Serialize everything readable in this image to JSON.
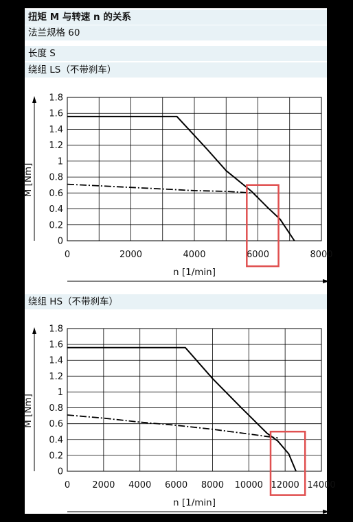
{
  "header": {
    "title": "扭矩 M 与转速 n 的关系",
    "flange": "法兰规格 60",
    "length": "长度 S",
    "winding_ls": "绕组 LS（不带刹车）",
    "winding_hs": "绕组 HS（不带刹车）"
  },
  "colors": {
    "header_bg": "#e8f2f6",
    "highlight": "#e05050",
    "curve": "#000000"
  },
  "chart_data": [
    {
      "type": "line",
      "name": "winding LS",
      "xlabel": "n [1/min]",
      "ylabel": "M [Nm]",
      "xlim": [
        0,
        8000
      ],
      "ylim": [
        0,
        1.8
      ],
      "xticks": [
        0,
        2000,
        4000,
        6000,
        8000
      ],
      "yticks": [
        0,
        0.2,
        0.4,
        0.6,
        0.8,
        1,
        1.2,
        1.4,
        1.6,
        1.8
      ],
      "grid": true,
      "series": [
        {
          "style": "solid",
          "x": [
            0,
            3450,
            4400,
            5000,
            5800,
            6300,
            6700,
            7150
          ],
          "y": [
            1.56,
            1.56,
            1.15,
            0.88,
            0.62,
            0.42,
            0.27,
            0.0
          ]
        },
        {
          "style": "dashdot",
          "x": [
            0,
            1000,
            2000,
            3000,
            4000,
            5000,
            5800
          ],
          "y": [
            0.71,
            0.69,
            0.67,
            0.65,
            0.63,
            0.62,
            0.6
          ]
        }
      ],
      "highlight": {
        "x": [
          5650,
          6650
        ],
        "y": [
          -0.32,
          0.7
        ]
      }
    },
    {
      "type": "line",
      "name": "winding HS",
      "xlabel": "n [1/min]",
      "ylabel": "M [Nm]",
      "xlim": [
        0,
        14000
      ],
      "ylim": [
        0,
        1.8
      ],
      "xticks": [
        0,
        2000,
        4000,
        6000,
        8000,
        10000,
        12000,
        14000
      ],
      "yticks": [
        0,
        0.2,
        0.4,
        0.6,
        0.8,
        1,
        1.2,
        1.4,
        1.6,
        1.8
      ],
      "grid": true,
      "series": [
        {
          "style": "solid",
          "x": [
            0,
            6500,
            8000,
            9500,
            11000,
            11600,
            12200,
            12600
          ],
          "y": [
            1.56,
            1.56,
            1.17,
            0.82,
            0.48,
            0.38,
            0.22,
            0.0
          ]
        },
        {
          "style": "dashdot",
          "x": [
            0,
            2000,
            4000,
            6000,
            8000,
            10000,
            11600
          ],
          "y": [
            0.71,
            0.67,
            0.62,
            0.58,
            0.53,
            0.47,
            0.42
          ]
        }
      ],
      "highlight": {
        "x": [
          11200,
          13100
        ],
        "y": [
          -0.3,
          0.5
        ]
      }
    }
  ]
}
